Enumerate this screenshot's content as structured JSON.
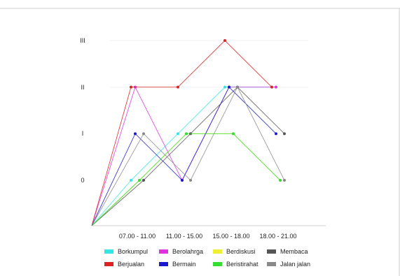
{
  "chart_data": {
    "type": "line",
    "categories": [
      "07.00 - 11.00",
      "11.00 - 15.00",
      "15.00 - 18.00",
      "18.00 - 21.00"
    ],
    "y_tick_labels": [
      "0",
      "I",
      "II",
      "III"
    ],
    "ylim": [
      0,
      3
    ],
    "x_start_at_origin": true,
    "grid": "faint horizontal at II and III",
    "legend_position": "bottom",
    "series": [
      {
        "name": "Borkumpul",
        "color": "#33e6e6",
        "values": [
          0,
          1,
          2,
          2
        ]
      },
      {
        "name": "Berolahrga",
        "color": "#dd33dd",
        "values": [
          2,
          0,
          2,
          2
        ]
      },
      {
        "name": "Berdiskusi",
        "color": "#eeee33",
        "values": [
          0,
          1,
          1,
          0
        ]
      },
      {
        "name": "Membaca",
        "color": "#555555",
        "values": [
          0,
          1,
          2,
          1
        ]
      },
      {
        "name": "Berjualan",
        "color": "#dd2222",
        "values": [
          2,
          2,
          3,
          2
        ]
      },
      {
        "name": "Bermain",
        "color": "#1a1acc",
        "values": [
          1,
          0,
          2,
          1
        ]
      },
      {
        "name": "Beristirahat",
        "color": "#33dd33",
        "values": [
          0,
          1,
          1,
          0
        ]
      },
      {
        "name": "Jalan jalan",
        "color": "#888888",
        "values": [
          1,
          0,
          2,
          0
        ]
      }
    ]
  }
}
